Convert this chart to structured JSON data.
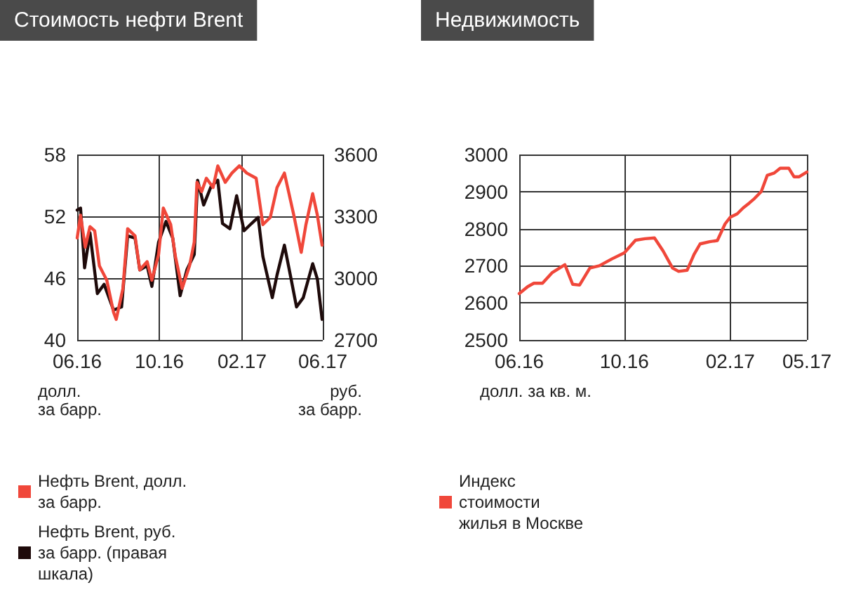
{
  "chart_data": [
    {
      "type": "line",
      "title": "Стоимость нефти Brent",
      "ylabel": "долл.\nза барр.",
      "y2label": "руб.\nза барр.",
      "xlim": [
        "2016-06-01",
        "2017-06-01"
      ],
      "xticks": [
        {
          "value": "2016-06-01",
          "label": "06.16"
        },
        {
          "value": "2016-10-01",
          "label": "10.16"
        },
        {
          "value": "2017-02-01",
          "label": "02.17"
        },
        {
          "value": "2017-06-01",
          "label": "06.17"
        }
      ],
      "ylim": [
        40,
        58
      ],
      "yticks": [
        40,
        46,
        52,
        58
      ],
      "y2lim": [
        2700,
        3600
      ],
      "y2ticks": [
        2700,
        3000,
        3300,
        3600
      ],
      "grid": true,
      "legend": "bottom",
      "marker": "none",
      "line_style": "solid",
      "series": [
        {
          "name": "Нефть Brent, долл. за барр.",
          "color": "#f0473a",
          "x": [
            "2016-06-01",
            "2016-06-06",
            "2016-06-13",
            "2016-06-20",
            "2016-06-27",
            "2016-07-04",
            "2016-07-15",
            "2016-07-25",
            "2016-07-29",
            "2016-08-08",
            "2016-08-15",
            "2016-08-26",
            "2016-09-02",
            "2016-09-13",
            "2016-09-20",
            "2016-09-30",
            "2016-10-07",
            "2016-10-18",
            "2016-10-25",
            "2016-11-04",
            "2016-11-15",
            "2016-11-22",
            "2016-11-26",
            "2016-12-03",
            "2016-12-10",
            "2016-12-20",
            "2016-12-27",
            "2017-01-07",
            "2017-01-17",
            "2017-01-28",
            "2017-02-08",
            "2017-02-22",
            "2017-03-04",
            "2017-03-15",
            "2017-03-25",
            "2017-04-05",
            "2017-04-19",
            "2017-04-30",
            "2017-05-07",
            "2017-05-17",
            "2017-05-24",
            "2017-05-31"
          ],
          "values": [
            49.9,
            52.1,
            49,
            51,
            50.6,
            47.2,
            45.8,
            42.7,
            42,
            45,
            50.8,
            50.1,
            46.8,
            47.6,
            45.8,
            48.3,
            52.8,
            51.2,
            48.1,
            45,
            47.2,
            49.5,
            55.3,
            54.4,
            55.7,
            54.8,
            56.9,
            55.3,
            56.2,
            56.9,
            56.2,
            55.7,
            51.2,
            51.9,
            54.8,
            56.2,
            52.1,
            48.5,
            51.2,
            54.2,
            52.1,
            49.2
          ]
        },
        {
          "name": "Нефть Brent, руб. за барр. (правая шкала)",
          "color": "#1e0a0a",
          "axis": "y2",
          "x": [
            "2016-06-01",
            "2016-06-06",
            "2016-06-12",
            "2016-06-20",
            "2016-07-01",
            "2016-07-11",
            "2016-07-25",
            "2016-08-06",
            "2016-08-15",
            "2016-08-26",
            "2016-09-02",
            "2016-09-13",
            "2016-09-20",
            "2016-09-30",
            "2016-10-11",
            "2016-10-21",
            "2016-11-01",
            "2016-11-11",
            "2016-11-22",
            "2016-11-27",
            "2016-12-06",
            "2016-12-17",
            "2016-12-27",
            "2017-01-03",
            "2017-01-14",
            "2017-01-24",
            "2017-02-04",
            "2017-02-15",
            "2017-02-25",
            "2017-03-04",
            "2017-03-18",
            "2017-03-25",
            "2017-04-05",
            "2017-04-15",
            "2017-04-23",
            "2017-05-03",
            "2017-05-17",
            "2017-05-24",
            "2017-05-31"
          ],
          "values": [
            3330,
            3340,
            3050,
            3220,
            2925,
            2970,
            2845,
            2860,
            3205,
            3195,
            3040,
            3060,
            2960,
            3175,
            3275,
            3195,
            2915,
            3040,
            3115,
            3475,
            3355,
            3445,
            3475,
            3265,
            3240,
            3400,
            3230,
            3265,
            3295,
            3105,
            2905,
            3015,
            3160,
            2995,
            2860,
            2905,
            3070,
            2995,
            2800
          ]
        }
      ]
    },
    {
      "type": "line",
      "title": "Недвижимость",
      "ylabel": "долл. за кв. м.",
      "xlim": [
        "2016-06-01",
        "2017-05-01"
      ],
      "xticks": [
        {
          "value": "2016-06-01",
          "label": "06.16"
        },
        {
          "value": "2016-10-01",
          "label": "10.16"
        },
        {
          "value": "2017-02-01",
          "label": "02.17"
        },
        {
          "value": "2017-05-01",
          "label": "05.17"
        }
      ],
      "ylim": [
        2500,
        3000
      ],
      "yticks": [
        2500,
        2600,
        2700,
        2800,
        2900,
        3000
      ],
      "grid": true,
      "legend": "bottom",
      "marker": "none",
      "line_style": "solid",
      "series": [
        {
          "name": "Индекс стоимости жилья в Москве",
          "color": "#f0473a",
          "x": [
            "2016-06-01",
            "2016-06-11",
            "2016-06-18",
            "2016-06-28",
            "2016-07-09",
            "2016-07-24",
            "2016-08-02",
            "2016-08-10",
            "2016-08-22",
            "2016-09-02",
            "2016-09-17",
            "2016-10-01",
            "2016-10-14",
            "2016-10-25",
            "2016-11-05",
            "2016-11-15",
            "2016-11-26",
            "2016-12-03",
            "2016-12-13",
            "2016-12-21",
            "2016-12-28",
            "2017-01-08",
            "2017-01-17",
            "2017-01-26",
            "2017-02-01",
            "2017-02-09",
            "2017-02-16",
            "2017-02-23",
            "2017-03-01",
            "2017-03-09",
            "2017-03-16",
            "2017-03-24",
            "2017-03-31",
            "2017-04-10",
            "2017-04-16",
            "2017-04-22",
            "2017-05-01"
          ],
          "values": [
            2625,
            2644,
            2653,
            2653,
            2681,
            2703,
            2650,
            2648,
            2694,
            2700,
            2719,
            2735,
            2769,
            2773,
            2775,
            2740,
            2694,
            2685,
            2688,
            2731,
            2759,
            2765,
            2768,
            2813,
            2831,
            2840,
            2856,
            2869,
            2881,
            2900,
            2944,
            2950,
            2963,
            2963,
            2940,
            2940,
            2953
          ]
        }
      ]
    }
  ]
}
